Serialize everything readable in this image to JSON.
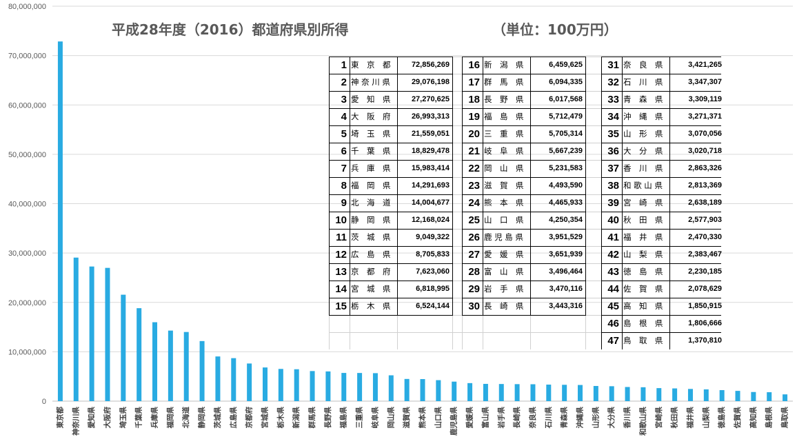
{
  "chart_data": {
    "type": "bar",
    "title": "平成28年度（2016）都道府県別所得",
    "unit_label": "（単位：100万円）",
    "ylim": [
      0,
      80000000
    ],
    "yticks": [
      "0",
      "10,000,000",
      "20,000,000",
      "30,000,000",
      "40,000,000",
      "50,000,000",
      "60,000,000",
      "70,000,000",
      "80,000,000"
    ],
    "grid": true,
    "bar_color": "#29abe2",
    "categories": [
      "東京都",
      "神奈川県",
      "愛知県",
      "大阪府",
      "埼玉県",
      "千葉県",
      "兵庫県",
      "福岡県",
      "北海道",
      "静岡県",
      "茨城県",
      "広島県",
      "京都府",
      "宮城県",
      "栃木県",
      "新潟県",
      "群馬県",
      "長野県",
      "福島県",
      "三重県",
      "岐阜県",
      "岡山県",
      "滋賀県",
      "熊本県",
      "山口県",
      "鹿児島県",
      "愛媛県",
      "富山県",
      "岩手県",
      "長崎県",
      "奈良県",
      "石川県",
      "青森県",
      "沖縄県",
      "山形県",
      "大分県",
      "香川県",
      "和歌山県",
      "宮崎県",
      "秋田県",
      "福井県",
      "山梨県",
      "徳島県",
      "佐賀県",
      "高知県",
      "島根県",
      "鳥取県"
    ],
    "values": [
      72856269,
      29076198,
      27270625,
      26993313,
      21559051,
      18829478,
      15983414,
      14291693,
      14004677,
      12168024,
      9049322,
      8705833,
      7623060,
      6818995,
      6524144,
      6459625,
      6094335,
      6017568,
      5712479,
      5705314,
      5667239,
      5231583,
      4493590,
      4465933,
      4250354,
      3951529,
      3651939,
      3496464,
      3470116,
      3443316,
      3421265,
      3347307,
      3309119,
      3271371,
      3070056,
      3020718,
      2863326,
      2813369,
      2638189,
      2577903,
      2470330,
      2383467,
      2230185,
      2078629,
      1850915,
      1806666,
      1370810
    ]
  },
  "table": {
    "columns": [
      [
        {
          "rank": "1",
          "name": "東　京　都",
          "value": "72,856,269"
        },
        {
          "rank": "2",
          "name": "神 奈 川 県",
          "value": "29,076,198"
        },
        {
          "rank": "3",
          "name": "愛　知　県",
          "value": "27,270,625"
        },
        {
          "rank": "4",
          "name": "大　阪　府",
          "value": "26,993,313"
        },
        {
          "rank": "5",
          "name": "埼　玉　県",
          "value": "21,559,051"
        },
        {
          "rank": "6",
          "name": "千　葉　県",
          "value": "18,829,478"
        },
        {
          "rank": "7",
          "name": "兵　庫　県",
          "value": "15,983,414"
        },
        {
          "rank": "8",
          "name": "福　岡　県",
          "value": "14,291,693"
        },
        {
          "rank": "9",
          "name": "北　海　道",
          "value": "14,004,677"
        },
        {
          "rank": "10",
          "name": "静　岡　県",
          "value": "12,168,024"
        },
        {
          "rank": "11",
          "name": "茨　城　県",
          "value": "9,049,322"
        },
        {
          "rank": "12",
          "name": "広　島　県",
          "value": "8,705,833"
        },
        {
          "rank": "13",
          "name": "京　都　府",
          "value": "7,623,060"
        },
        {
          "rank": "14",
          "name": "宮　城　県",
          "value": "6,818,995"
        },
        {
          "rank": "15",
          "name": "栃　木　県",
          "value": "6,524,144"
        }
      ],
      [
        {
          "rank": "16",
          "name": "新　潟　県",
          "value": "6,459,625"
        },
        {
          "rank": "17",
          "name": "群　馬　県",
          "value": "6,094,335"
        },
        {
          "rank": "18",
          "name": "長　野　県",
          "value": "6,017,568"
        },
        {
          "rank": "19",
          "name": "福　島　県",
          "value": "5,712,479"
        },
        {
          "rank": "20",
          "name": "三　重　県",
          "value": "5,705,314"
        },
        {
          "rank": "21",
          "name": "岐　阜　県",
          "value": "5,667,239"
        },
        {
          "rank": "22",
          "name": "岡　山　県",
          "value": "5,231,583"
        },
        {
          "rank": "23",
          "name": "滋　賀　県",
          "value": "4,493,590"
        },
        {
          "rank": "24",
          "name": "熊　本　県",
          "value": "4,465,933"
        },
        {
          "rank": "25",
          "name": "山　口　県",
          "value": "4,250,354"
        },
        {
          "rank": "26",
          "name": "鹿 児 島 県",
          "value": "3,951,529"
        },
        {
          "rank": "27",
          "name": "愛　媛　県",
          "value": "3,651,939"
        },
        {
          "rank": "28",
          "name": "富　山　県",
          "value": "3,496,464"
        },
        {
          "rank": "29",
          "name": "岩　手　県",
          "value": "3,470,116"
        },
        {
          "rank": "30",
          "name": "長　崎　県",
          "value": "3,443,316"
        }
      ],
      [
        {
          "rank": "31",
          "name": "奈　良　県",
          "value": "3,421,265"
        },
        {
          "rank": "32",
          "name": "石　川　県",
          "value": "3,347,307"
        },
        {
          "rank": "33",
          "name": "青　森　県",
          "value": "3,309,119"
        },
        {
          "rank": "34",
          "name": "沖　縄　県",
          "value": "3,271,371"
        },
        {
          "rank": "35",
          "name": "山　形　県",
          "value": "3,070,056"
        },
        {
          "rank": "36",
          "name": "大　分　県",
          "value": "3,020,718"
        },
        {
          "rank": "37",
          "name": "香　川　県",
          "value": "2,863,326"
        },
        {
          "rank": "38",
          "name": "和 歌 山 県",
          "value": "2,813,369"
        },
        {
          "rank": "39",
          "name": "宮　崎　県",
          "value": "2,638,189"
        },
        {
          "rank": "40",
          "name": "秋　田　県",
          "value": "2,577,903"
        },
        {
          "rank": "41",
          "name": "福　井　県",
          "value": "2,470,330"
        },
        {
          "rank": "42",
          "name": "山　梨　県",
          "value": "2,383,467"
        },
        {
          "rank": "43",
          "name": "徳　島　県",
          "value": "2,230,185"
        },
        {
          "rank": "44",
          "name": "佐　賀　県",
          "value": "2,078,629"
        },
        {
          "rank": "45",
          "name": "高　知　県",
          "value": "1,850,915"
        },
        {
          "rank": "46",
          "name": "島　根　県",
          "value": "1,806,666"
        },
        {
          "rank": "47",
          "name": "鳥　取　県",
          "value": "1,370,810"
        }
      ]
    ]
  }
}
